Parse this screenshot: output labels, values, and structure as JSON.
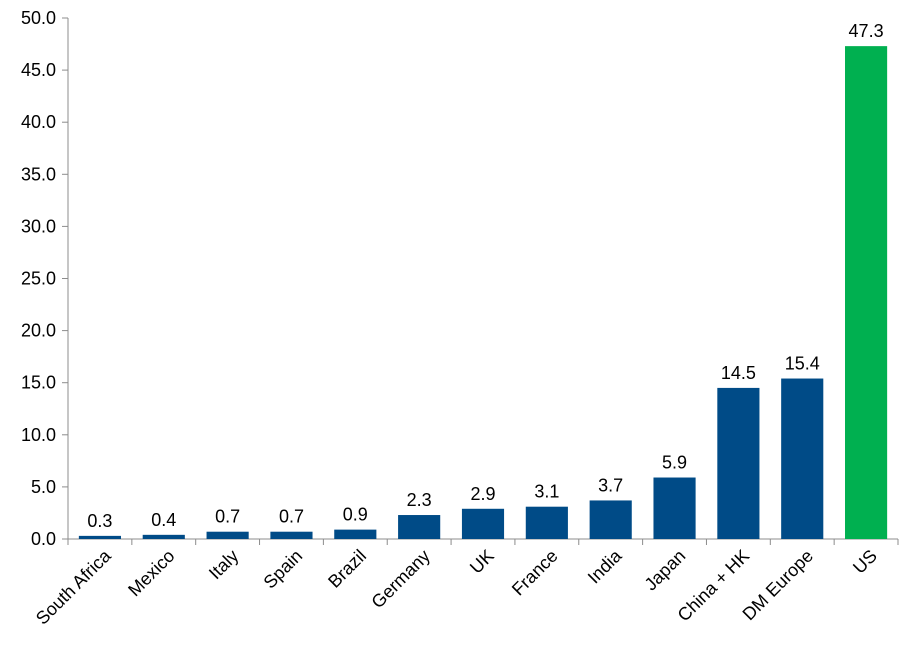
{
  "chart_data": {
    "type": "bar",
    "categories": [
      "South Africa",
      "Mexico",
      "Italy",
      "Spain",
      "Brazil",
      "Germany",
      "UK",
      "France",
      "India",
      "Japan",
      "China + HK",
      "DM Europe",
      "US"
    ],
    "values": [
      0.3,
      0.4,
      0.7,
      0.7,
      0.9,
      2.3,
      2.9,
      3.1,
      3.7,
      5.9,
      14.5,
      15.4,
      47.3
    ],
    "data_labels": [
      "0.3",
      "0.4",
      "0.7",
      "0.7",
      "0.9",
      "2.3",
      "2.9",
      "3.1",
      "3.7",
      "5.9",
      "14.5",
      "15.4",
      "47.3"
    ],
    "yticks": [
      "0.0",
      "5.0",
      "10.0",
      "15.0",
      "20.0",
      "25.0",
      "30.0",
      "35.0",
      "40.0",
      "45.0",
      "50.0"
    ],
    "ylim": [
      0,
      50
    ],
    "title": "",
    "xlabel": "",
    "ylabel": "",
    "grid": false,
    "legend": "none",
    "colors": {
      "default_bar": "#004b87",
      "highlight_bar": "#00b050",
      "highlight_category": "US"
    }
  }
}
